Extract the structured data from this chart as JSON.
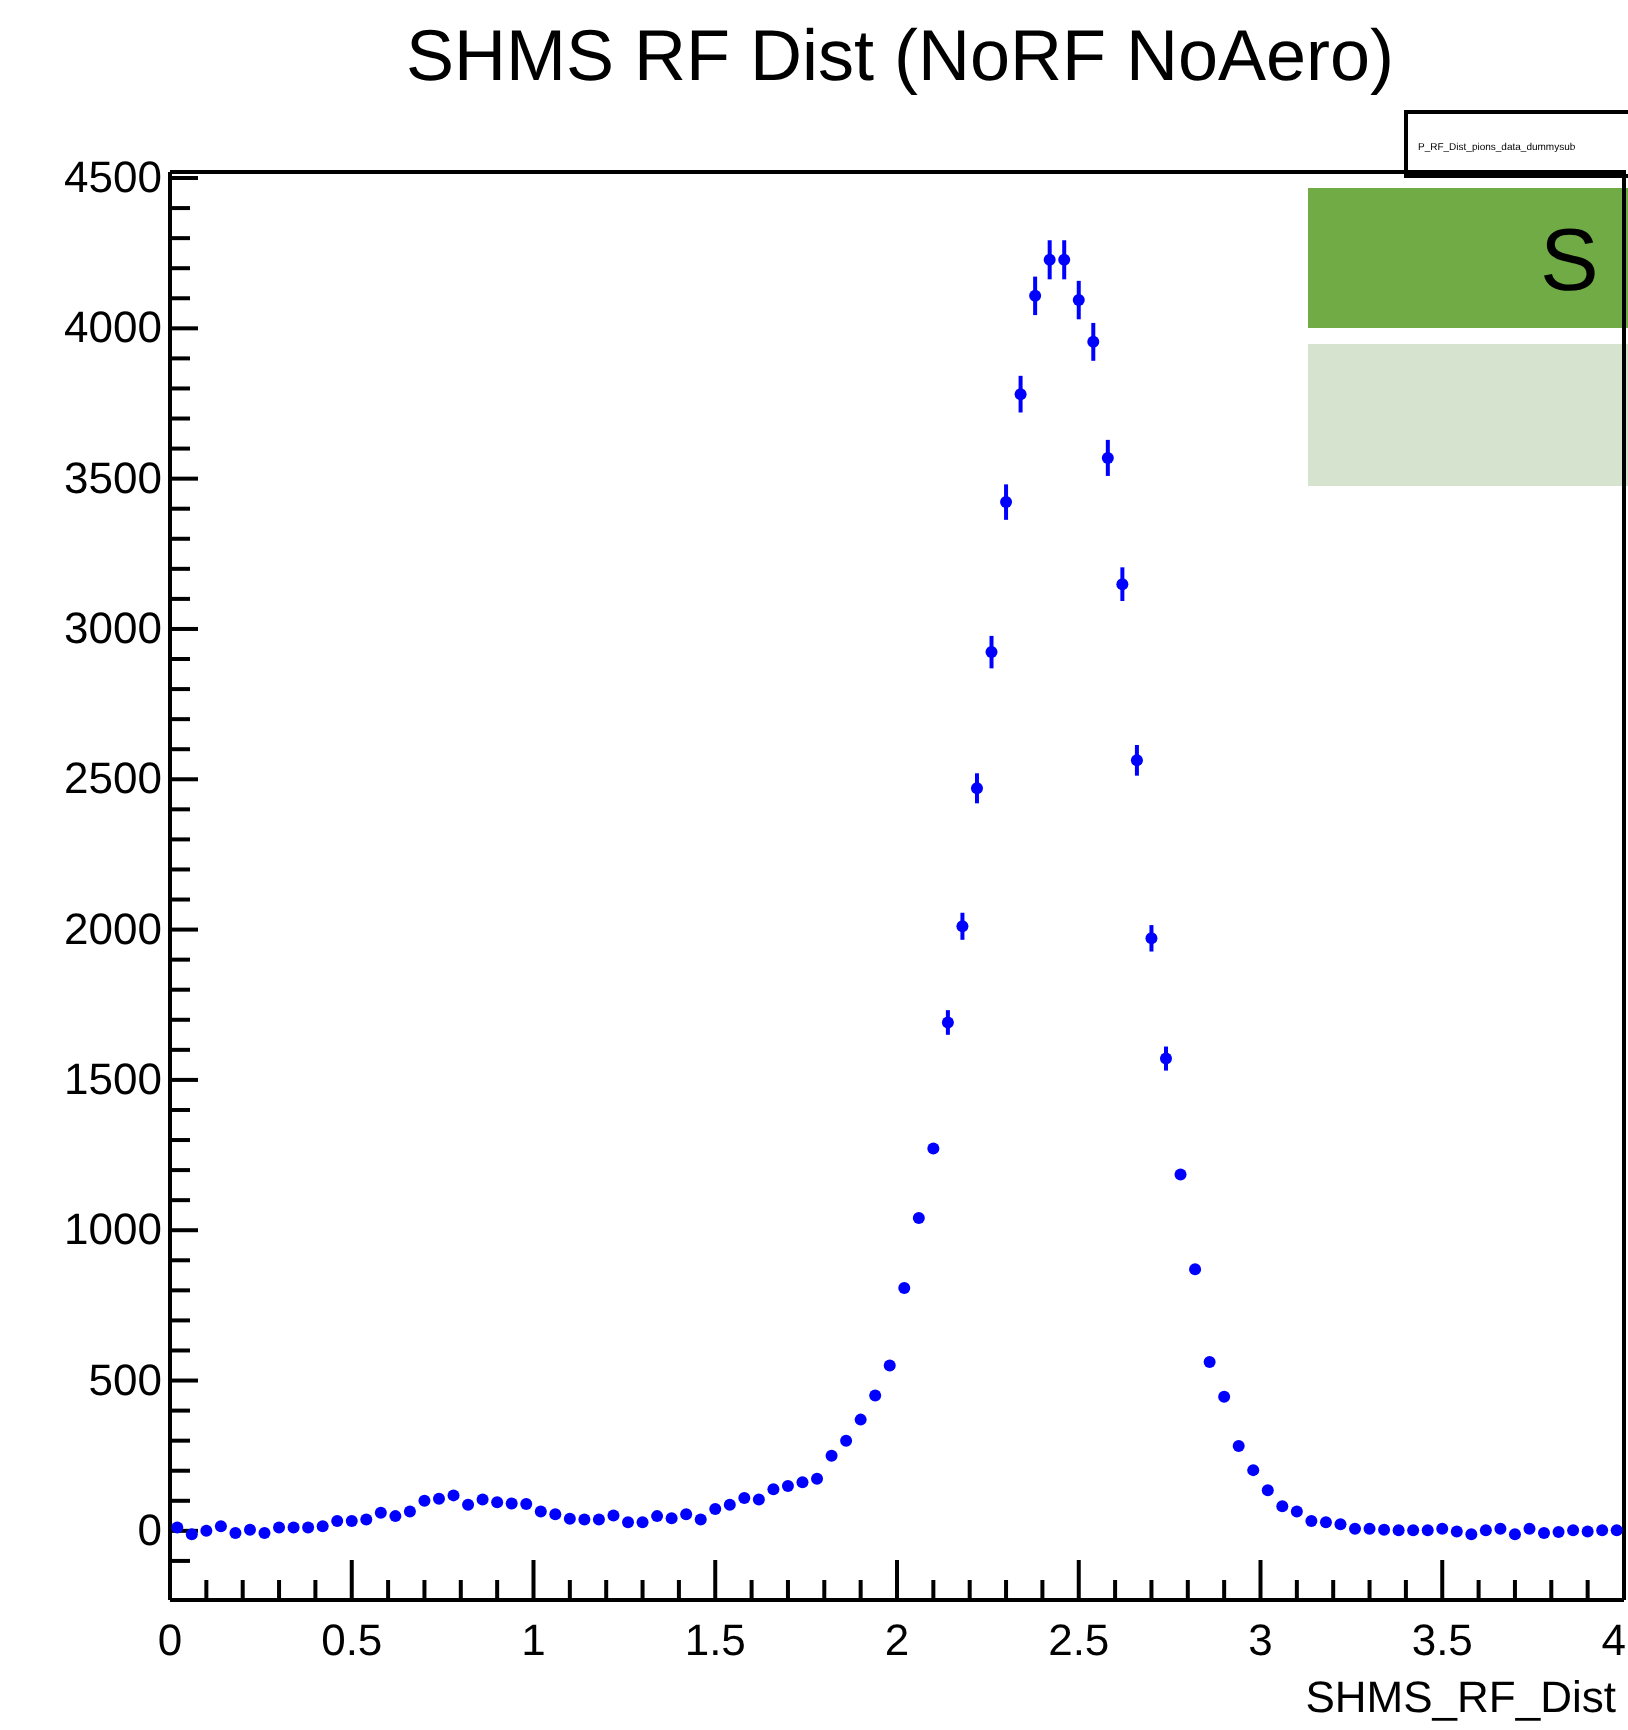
{
  "chart_data": {
    "type": "scatter",
    "title": "SHMS RF Dist (NoRF NoAero)",
    "xlabel": "SHMS_RF_Dist",
    "annotations": [
      "P_RF_Dist_pions_data_dummysub",
      "S"
    ],
    "x": [
      0.02,
      0.06,
      0.1,
      0.14,
      0.18,
      0.22,
      0.26,
      0.3,
      0.34,
      0.38,
      0.42,
      0.46,
      0.5,
      0.54,
      0.58,
      0.62,
      0.66,
      0.7,
      0.74,
      0.78,
      0.82,
      0.86,
      0.9,
      0.94,
      0.98,
      1.02,
      1.06,
      1.1,
      1.14,
      1.18,
      1.22,
      1.26,
      1.3,
      1.34,
      1.38,
      1.42,
      1.46,
      1.5,
      1.54,
      1.58,
      1.62,
      1.66,
      1.7,
      1.74,
      1.78,
      1.82,
      1.86,
      1.9,
      1.94,
      1.98,
      2.02,
      2.06,
      2.1,
      2.14,
      2.18,
      2.22,
      2.26,
      2.3,
      2.34,
      2.38,
      2.42,
      2.46,
      2.5,
      2.54,
      2.58,
      2.62,
      2.66,
      2.7,
      2.74,
      2.78,
      2.82,
      2.86,
      2.9,
      2.94,
      2.98,
      3.02,
      3.06,
      3.1,
      3.14,
      3.18,
      3.22,
      3.26,
      3.3,
      3.34,
      3.38,
      3.42,
      3.46,
      3.5,
      3.54,
      3.58,
      3.62,
      3.66,
      3.7,
      3.74,
      3.78,
      3.82,
      3.86,
      3.9,
      3.94,
      3.98
    ],
    "series": [
      {
        "color": "#0000ff",
        "values": [
          11,
          -11,
          0,
          15,
          -7,
          4,
          -7,
          11,
          11,
          11,
          15,
          33,
          33,
          38,
          60,
          49,
          64,
          100,
          107,
          118,
          87,
          104,
          95,
          91,
          89,
          64,
          55,
          40,
          38,
          38,
          51,
          29,
          29,
          49,
          42,
          55,
          38,
          73,
          87,
          109,
          104,
          138,
          149,
          162,
          173,
          250,
          300,
          370,
          450,
          550,
          808,
          1041,
          1272,
          1691,
          2011,
          2470,
          2923,
          3422,
          3781,
          4108,
          4228,
          4228,
          4094,
          3955,
          3569,
          3149,
          2563,
          1971,
          1571,
          1185,
          870,
          562,
          446,
          282,
          202,
          135,
          82,
          64,
          33,
          29,
          22,
          7,
          7,
          4,
          2,
          2,
          2,
          7,
          -2,
          -11,
          2,
          7,
          -11,
          7,
          -7,
          -4,
          2,
          -2,
          2,
          2
        ],
        "errors": [
          null,
          null,
          null,
          null,
          null,
          null,
          null,
          null,
          null,
          null,
          null,
          null,
          null,
          null,
          null,
          null,
          null,
          null,
          null,
          null,
          null,
          null,
          null,
          null,
          null,
          null,
          null,
          null,
          null,
          null,
          null,
          null,
          null,
          null,
          null,
          null,
          null,
          null,
          null,
          null,
          null,
          null,
          null,
          null,
          null,
          null,
          null,
          null,
          null,
          null,
          null,
          null,
          null,
          41,
          45,
          50,
          54,
          59,
          61,
          64,
          65,
          65,
          64,
          63,
          60,
          56,
          51,
          44,
          40,
          null,
          null,
          null,
          null,
          null,
          null,
          null,
          null,
          null,
          null,
          null,
          null,
          null,
          null,
          null,
          null,
          null,
          null,
          null,
          null,
          null,
          null,
          null,
          null,
          null,
          null,
          null,
          null,
          null,
          null,
          null
        ]
      }
    ],
    "marker": "circle",
    "grid": false,
    "xlim": [
      0,
      4
    ],
    "xticks": [
      0,
      {
        "value": 0.1,
        "label": null
      },
      {
        "value": 0.2,
        "label": null
      },
      {
        "value": 0.3,
        "label": null
      },
      {
        "value": 0.4,
        "label": null
      },
      0.5,
      {
        "value": 0.6,
        "label": null
      },
      {
        "value": 0.7,
        "label": null
      },
      {
        "value": 0.8,
        "label": null
      },
      {
        "value": 0.9,
        "label": null
      },
      1,
      {
        "value": 1.1,
        "label": null
      },
      {
        "value": 1.2,
        "label": null
      },
      {
        "value": 1.3,
        "label": null
      },
      {
        "value": 1.4,
        "label": null
      },
      1.5,
      {
        "value": 1.6,
        "label": null
      },
      {
        "value": 1.7,
        "label": null
      },
      {
        "value": 1.8,
        "label": null
      },
      {
        "value": 1.9,
        "label": null
      },
      2,
      {
        "value": 2.1,
        "label": null
      },
      {
        "value": 2.2,
        "label": null
      },
      {
        "value": 2.3,
        "label": null
      },
      {
        "value": 2.4,
        "label": null
      },
      2.5,
      {
        "value": 2.6,
        "label": null
      },
      {
        "value": 2.7,
        "label": null
      },
      {
        "value": 2.8,
        "label": null
      },
      {
        "value": 2.9,
        "label": null
      },
      3,
      {
        "value": 3.1,
        "label": null
      },
      {
        "value": 3.2,
        "label": null
      },
      {
        "value": 3.3,
        "label": null
      },
      {
        "value": 3.4,
        "label": null
      },
      3.5,
      {
        "value": 3.6,
        "label": null
      },
      {
        "value": 3.7,
        "label": null
      },
      {
        "value": 3.8,
        "label": null
      },
      {
        "value": 3.9,
        "label": null
      },
      4
    ],
    "ylim": [
      -230,
      4520
    ],
    "yticks": [
      {
        "value": -100,
        "label": null
      },
      0,
      {
        "value": 100,
        "label": null
      },
      {
        "value": 200,
        "label": null
      },
      {
        "value": 300,
        "label": null
      },
      {
        "value": 400,
        "label": null
      },
      500,
      {
        "value": 600,
        "label": null
      },
      {
        "value": 700,
        "label": null
      },
      {
        "value": 800,
        "label": null
      },
      {
        "value": 900,
        "label": null
      },
      1000,
      {
        "value": 1100,
        "label": null
      },
      {
        "value": 1200,
        "label": null
      },
      {
        "value": 1300,
        "label": null
      },
      {
        "value": 1400,
        "label": null
      },
      1500,
      {
        "value": 1600,
        "label": null
      },
      {
        "value": 1700,
        "label": null
      },
      {
        "value": 1800,
        "label": null
      },
      {
        "value": 1900,
        "label": null
      },
      2000,
      {
        "value": 2100,
        "label": null
      },
      {
        "value": 2200,
        "label": null
      },
      {
        "value": 2300,
        "label": null
      },
      {
        "value": 2400,
        "label": null
      },
      2500,
      {
        "value": 2600,
        "label": null
      },
      {
        "value": 2700,
        "label": null
      },
      {
        "value": 2800,
        "label": null
      },
      {
        "value": 2900,
        "label": null
      },
      3000,
      {
        "value": 3100,
        "label": null
      },
      {
        "value": 3200,
        "label": null
      },
      {
        "value": 3300,
        "label": null
      },
      {
        "value": 3400,
        "label": null
      },
      3500,
      {
        "value": 3600,
        "label": null
      },
      {
        "value": 3700,
        "label": null
      },
      {
        "value": 3800,
        "label": null
      },
      {
        "value": 3900,
        "label": null
      },
      4000,
      {
        "value": 4100,
        "label": null
      },
      {
        "value": 4200,
        "label": null
      },
      {
        "value": 4300,
        "label": null
      },
      {
        "value": 4400,
        "label": null
      },
      4500
    ]
  }
}
